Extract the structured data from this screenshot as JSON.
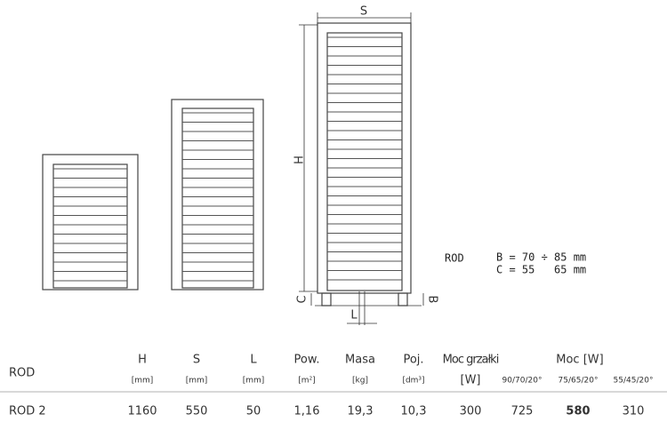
{
  "drawing": {
    "labels": {
      "s": "S",
      "h": "H",
      "c": "C",
      "l": "L",
      "b": "B"
    },
    "note": {
      "model": "ROD",
      "line1": "B = 70 ÷ 85 mm",
      "line2": "C = 55   65 mm"
    }
  },
  "table": {
    "row_header": "ROD",
    "columns": [
      {
        "name": "H",
        "unit": "[mm]"
      },
      {
        "name": "S",
        "unit": "[mm]"
      },
      {
        "name": "L",
        "unit": "[mm]"
      },
      {
        "name": "Pow.",
        "unit": "[m²]"
      },
      {
        "name": "Masa",
        "unit": "[kg]"
      },
      {
        "name": "Poj.",
        "unit": "[dm³]"
      },
      {
        "name": "Moc grzałki",
        "unit": "[W]"
      }
    ],
    "power_group": {
      "name": "Moc [W]",
      "subcolumns": [
        "90/70/20°",
        "75/65/20°",
        "55/45/20°"
      ]
    },
    "rows": [
      [
        "ROD 2",
        "1160",
        "550",
        "50",
        "1,16",
        "19,3",
        "10,3",
        "300",
        "725",
        "580",
        "310"
      ]
    ]
  }
}
